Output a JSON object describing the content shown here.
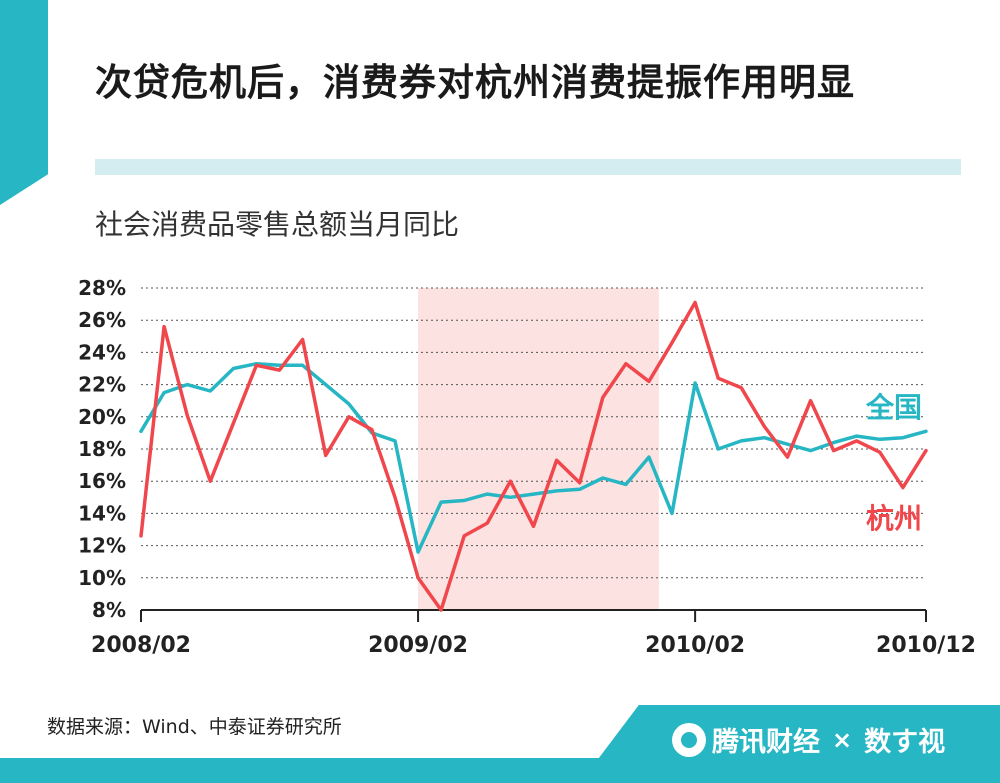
{
  "title": "次贷危机后，消费券对杭州消费提振作用明显",
  "subtitle": "社会消费品零售总额当月同比",
  "source": "数据来源：Wind、中泰证券研究所",
  "brand": {
    "name": "腾讯财经",
    "times": "×",
    "partner": "数す视"
  },
  "colors": {
    "accent": "#27b6c4",
    "national": "#27b6c4",
    "hangzhou": "#f0474c",
    "highlight": "#fde2e2"
  },
  "chart_data": {
    "type": "line",
    "title": "社会消费品零售总额当月同比",
    "x_tick_labels": [
      "2008/02",
      "2009/02",
      "2010/02",
      "2010/12"
    ],
    "x_tick_indices": [
      0,
      12,
      24,
      34
    ],
    "ylim": [
      8,
      28
    ],
    "y_tick_labels": [
      "28%",
      "26%",
      "24%",
      "22%",
      "20%",
      "18%",
      "16%",
      "14%",
      "12%",
      "10%",
      "8%"
    ],
    "y_ticks": [
      28,
      26,
      24,
      22,
      20,
      18,
      16,
      14,
      12,
      10,
      8
    ],
    "grid": true,
    "highlight_range_indices": [
      12,
      22
    ],
    "x": [
      "2008/02",
      "2008/03",
      "2008/04",
      "2008/05",
      "2008/06",
      "2008/07",
      "2008/08",
      "2008/09",
      "2008/10",
      "2008/11",
      "2008/12",
      "2009/01",
      "2009/02",
      "2009/03",
      "2009/04",
      "2009/05",
      "2009/06",
      "2009/07",
      "2009/08",
      "2009/09",
      "2009/10",
      "2009/11",
      "2009/12",
      "2010/01",
      "2010/02",
      "2010/03",
      "2010/04",
      "2010/05",
      "2010/06",
      "2010/07",
      "2010/08",
      "2010/09",
      "2010/10",
      "2010/11",
      "2010/12"
    ],
    "series": [
      {
        "name": "全国",
        "values": [
          19.1,
          21.5,
          22.0,
          21.6,
          23.0,
          23.3,
          23.2,
          23.2,
          22.0,
          20.8,
          19.0,
          18.5,
          11.6,
          14.7,
          14.8,
          15.2,
          15.0,
          15.2,
          15.4,
          15.5,
          16.2,
          15.8,
          17.5,
          14.0,
          22.1,
          18.0,
          18.5,
          18.7,
          18.3,
          17.9,
          18.4,
          18.8,
          18.6,
          18.7,
          19.1
        ]
      },
      {
        "name": "杭州",
        "values": [
          12.6,
          25.6,
          20.1,
          16.0,
          19.6,
          23.2,
          22.9,
          24.8,
          17.6,
          20.0,
          19.2,
          15.0,
          10.0,
          8.0,
          12.6,
          13.4,
          16.0,
          13.2,
          17.3,
          15.9,
          21.2,
          23.3,
          22.2,
          24.6,
          27.1,
          22.4,
          21.8,
          19.4,
          17.5,
          21.0,
          17.9,
          18.5,
          17.8,
          15.6,
          17.9
        ]
      }
    ]
  }
}
